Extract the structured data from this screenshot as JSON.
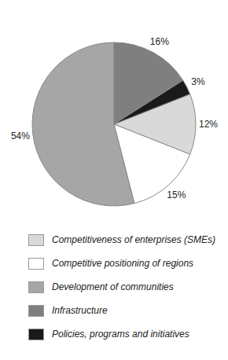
{
  "chart_data": {
    "type": "pie",
    "categories": [
      "Competitiveness of enterprises (SMEs)",
      "Competitive positioning of regions",
      "Development of communities",
      "Infrastructure",
      "Policies, programs and initiatives"
    ],
    "values": [
      12,
      15,
      54,
      16,
      3
    ],
    "value_labels": [
      "12%",
      "15%",
      "54%",
      "16%",
      "3%"
    ],
    "colors": [
      "#d9d9d9",
      "#ffffff",
      "#a6a6a6",
      "#7f7f7f",
      "#1a1a1a"
    ],
    "legend": "bottom"
  }
}
